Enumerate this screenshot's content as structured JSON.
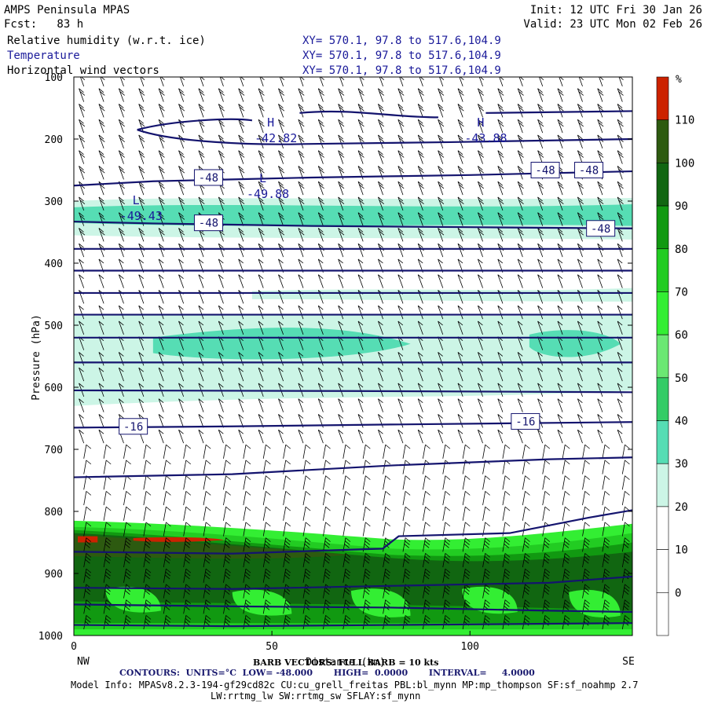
{
  "header": {
    "title": "AMPS Peninsula MPAS",
    "forecast": "Fcst:   83 h",
    "init": "Init: 12 UTC Fri 30 Jan 26",
    "valid": "Valid: 23 UTC Mon 02 Feb 26",
    "fields": [
      {
        "name": "Relative humidity (w.r.t. ice)",
        "xy": "XY= 570.1, 97.8 to 517.6,104.9"
      },
      {
        "name": "Temperature",
        "xy": "XY= 570.1, 97.8 to 517.6,104.9"
      },
      {
        "name": "Horizontal wind vectors",
        "xy": "XY= 570.1, 97.8 to 517.6,104.9"
      }
    ]
  },
  "colorbar": {
    "unit_label": "%",
    "levels": [
      0,
      10,
      20,
      30,
      40,
      50,
      60,
      70,
      80,
      90,
      100,
      110
    ],
    "colors": [
      "#ffffff",
      "#ffffff",
      "#ffffff",
      "#ccf5e6",
      "#56ddb4",
      "#33cc66",
      "#6be873",
      "#33ee33",
      "#22cc22",
      "#119911",
      "#116611",
      "#2d5a10",
      "#cc2200"
    ]
  },
  "chart_data": {
    "type": "contour",
    "xlabel": "Distance (km)",
    "ylabel": "Pressure (hPa)",
    "xlim": [
      0,
      141
    ],
    "ylim": [
      1000,
      100
    ],
    "x_ticks": [
      0,
      50,
      100
    ],
    "y_ticks": [
      100,
      200,
      300,
      400,
      500,
      600,
      700,
      800,
      900,
      1000
    ],
    "left_end_label": "NW",
    "right_end_label": "SE",
    "rh_bands": [
      {
        "rh": "30-40",
        "p_top": 480,
        "p_bottom": 630
      },
      {
        "rh": "40-50",
        "p_top": 495,
        "p_bottom": 560
      },
      {
        "rh": "30-50",
        "p_top": 290,
        "p_bottom": 360
      },
      {
        "rh": "30-40",
        "p_top": 440,
        "p_bottom": 460
      },
      {
        "rh": "50-110",
        "p_top": 820,
        "p_bottom": 1000
      },
      {
        "rh": ">110",
        "p_top": 825,
        "p_bottom": 845
      }
    ],
    "temperature_contours_label_values": [
      "-48",
      "-48",
      "-48",
      "-48",
      "-48",
      "-16",
      "-16"
    ],
    "temperature_contours": [
      {
        "x": [
          0,
          20,
          40,
          60,
          80,
          100,
          120,
          141
        ],
        "p": [
          275,
          268,
          265,
          262,
          260,
          258,
          255,
          252
        ]
      },
      {
        "x": [
          0,
          20,
          40,
          60,
          80,
          100,
          120,
          141
        ],
        "p": [
          333,
          336,
          338,
          340,
          341,
          342,
          343,
          344
        ]
      },
      {
        "x": [
          0,
          141
        ],
        "p": [
          377,
          377
        ]
      },
      {
        "x": [
          0,
          141
        ],
        "p": [
          412,
          412
        ]
      },
      {
        "x": [
          0,
          141
        ],
        "p": [
          448,
          448
        ]
      },
      {
        "x": [
          0,
          141
        ],
        "p": [
          483,
          483
        ]
      },
      {
        "x": [
          0,
          141
        ],
        "p": [
          520,
          520
        ]
      },
      {
        "x": [
          0,
          141
        ],
        "p": [
          560,
          560
        ]
      },
      {
        "x": [
          0,
          70,
          141
        ],
        "p": [
          605,
          606,
          608
        ]
      },
      {
        "x": [
          0,
          40,
          80,
          141
        ],
        "p": [
          665,
          663,
          660,
          656
        ]
      },
      {
        "x": [
          0,
          40,
          80,
          120,
          141
        ],
        "p": [
          745,
          740,
          726,
          716,
          713
        ]
      },
      {
        "x": [
          0,
          40,
          78,
          82,
          110,
          130,
          141
        ],
        "p": [
          865,
          868,
          860,
          840,
          835,
          810,
          798
        ]
      },
      {
        "x": [
          0,
          40,
          80,
          120,
          141
        ],
        "p": [
          923,
          925,
          920,
          915,
          905
        ]
      },
      {
        "x": [
          0,
          40,
          80,
          120,
          141
        ],
        "p": [
          950,
          953,
          955,
          960,
          962
        ]
      },
      {
        "x": [
          0,
          40,
          80,
          141
        ],
        "p": [
          983,
          985,
          983,
          980
        ]
      }
    ],
    "pressure_centers": [
      {
        "label": "H",
        "value": "-42.82",
        "x": 50,
        "p": 200
      },
      {
        "label": "H",
        "value": "-43.88",
        "x": 103,
        "p": 200
      },
      {
        "label": "L",
        "value": "-49.88",
        "x": 48,
        "p": 290
      },
      {
        "label": "L",
        "value": "-49.43",
        "x": 16,
        "p": 325
      }
    ],
    "wind_barbs": "Horizontal wind vectors"
  },
  "footer": {
    "barb_note": "BARB VECTORS: FULL BARB = 10 kts",
    "contours": "CONTOURS:  UNITS=°C  LOW= -48.000       HIGH=  0.0000       INTERVAL=     4.0000",
    "model_info_1": "Model Info: MPASv8.2.3-194-gf29cd82c CU:cu_grell_freitas PBL:bl_mynn MP:mp_thompson SF:sf_noahmp 2.7",
    "model_info_2": "LW:rrtmg_lw SW:rrtmg_sw SFLAY:sf_mynn"
  }
}
